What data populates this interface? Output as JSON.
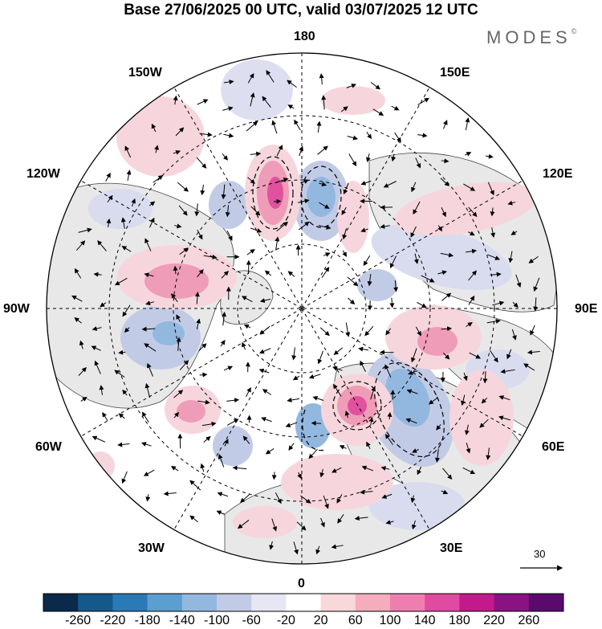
{
  "title": "Base 27/06/2025 00 UTC, valid 03/07/2025 12 UTC",
  "brand": "MODES",
  "brand_mark": "©",
  "longitude_labels": {
    "top": "180",
    "upper_left": "150W",
    "upper_right": "150E",
    "mid_upper_left": "120W",
    "mid_upper_right": "120E",
    "left": "90W",
    "right": "90E",
    "mid_lower_left": "60W",
    "mid_lower_right": "60E",
    "lower_left": "30W",
    "lower_right": "30E",
    "bottom": "0"
  },
  "vector_scale_label": "30",
  "colorbar": {
    "tick_labels": [
      "-260",
      "-220",
      "-180",
      "-140",
      "-100",
      "-60",
      "-20",
      "20",
      "60",
      "100",
      "140",
      "180",
      "220",
      "260"
    ],
    "colors": [
      "#0b2a4a",
      "#15598c",
      "#2a7ab8",
      "#5b9fd0",
      "#93b8e0",
      "#c2cbe6",
      "#e6e6f4",
      "#ffffff",
      "#f9d8dc",
      "#f5acbd",
      "#ef7eb0",
      "#e04aa0",
      "#c21a8c",
      "#8a1282",
      "#5a0a6e"
    ]
  },
  "anomaly_colors": {
    "positive_weak": "#f6d6dc",
    "positive_mid": "#ef9cb8",
    "positive_strong": "#e0529e",
    "negative_weak": "#d9dcef",
    "negative_mid": "#9fb4dc",
    "negative_strong": "#5b8ec9",
    "land": "#e6e6e6"
  }
}
